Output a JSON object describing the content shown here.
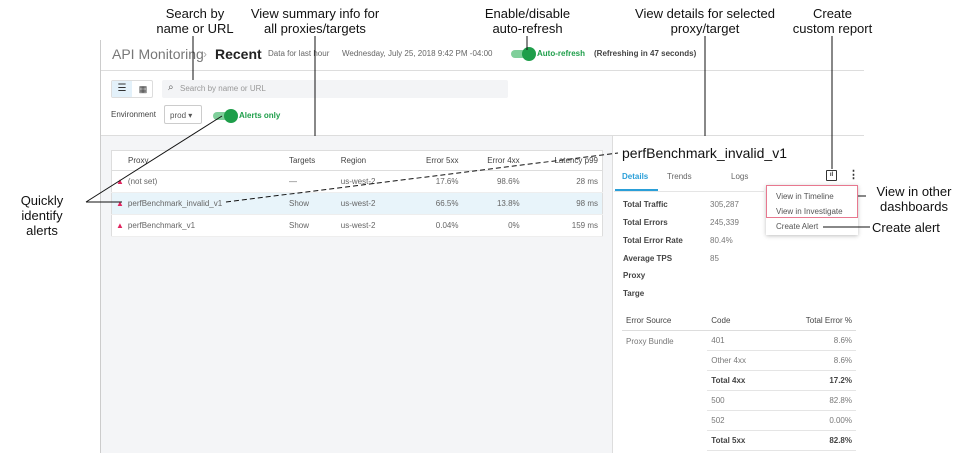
{
  "annotations": {
    "search": "Search by\nname or URL",
    "summary": "View summary info for\nall proxies/targets",
    "refresh": "Enable/disable\nauto-refresh",
    "details": "View details for selected\nproxy/target",
    "report": "Create\ncustom report",
    "alerts": "Quickly identify\nalerts",
    "dashboards": "View in other\ndashboards",
    "create_alert": "Create alert"
  },
  "header": {
    "app": "API Monitoring",
    "page": "Recent",
    "data_range": "Data for last hour",
    "datetime": "Wednesday, July 25, 2018 9:42 PM -04:00",
    "auto_refresh": "Auto-refresh",
    "refresh_status": "(Refreshing in 47 seconds)"
  },
  "toolbar": {
    "search_placeholder": "Search by name or URL",
    "env_label": "Environment",
    "env_value": "prod",
    "alerts_only": "Alerts only"
  },
  "table": {
    "headers": [
      "Proxy",
      "Targets",
      "Region",
      "Error 5xx",
      "Error 4xx",
      "Latency p99"
    ],
    "rows": [
      {
        "proxy": "(not set)",
        "targets": "—",
        "region": "us-west-2",
        "e5": "17.6%",
        "e4": "98.6%",
        "lat": "28 ms"
      },
      {
        "proxy": "perfBenchmark_invalid_v1",
        "targets": "Show",
        "region": "us-west-2",
        "e5": "66.5%",
        "e4": "13.8%",
        "lat": "98 ms"
      },
      {
        "proxy": "perfBenchmark_v1",
        "targets": "Show",
        "region": "us-west-2",
        "e5": "0.04%",
        "e4": "0%",
        "lat": "159 ms"
      }
    ]
  },
  "panel": {
    "title": "perfBenchmark_invalid_v1",
    "tabs": [
      "Details",
      "Trends",
      "Logs"
    ],
    "details": [
      {
        "label": "Total Traffic",
        "value": "305,287"
      },
      {
        "label": "Total Errors",
        "value": "245,339"
      },
      {
        "label": "Total Error Rate",
        "value": "80.4%"
      },
      {
        "label": "Average TPS",
        "value": "85"
      },
      {
        "label": "Proxy",
        "value": ""
      },
      {
        "label": "Targe",
        "value": ""
      }
    ],
    "menu": [
      "View in Timeline",
      "View in Investigate",
      "Create Alert"
    ],
    "errors": {
      "headers": [
        "Error Source",
        "Code",
        "Total Error %"
      ],
      "source": "Proxy Bundle",
      "rows": [
        {
          "code": "401",
          "pct": "8.6%"
        },
        {
          "code": "Other 4xx",
          "pct": "8.6%"
        },
        {
          "code": "Total 4xx",
          "pct": "17.2%"
        },
        {
          "code": "500",
          "pct": "82.8%"
        },
        {
          "code": "502",
          "pct": "0.00%"
        },
        {
          "code": "Total 5xx",
          "pct": "82.8%"
        }
      ]
    }
  },
  "colors": {
    "accent": "#1e9e4a",
    "link": "#2a9fd8",
    "alert": "#e0245e",
    "menu_highlight": "#e8788f"
  }
}
